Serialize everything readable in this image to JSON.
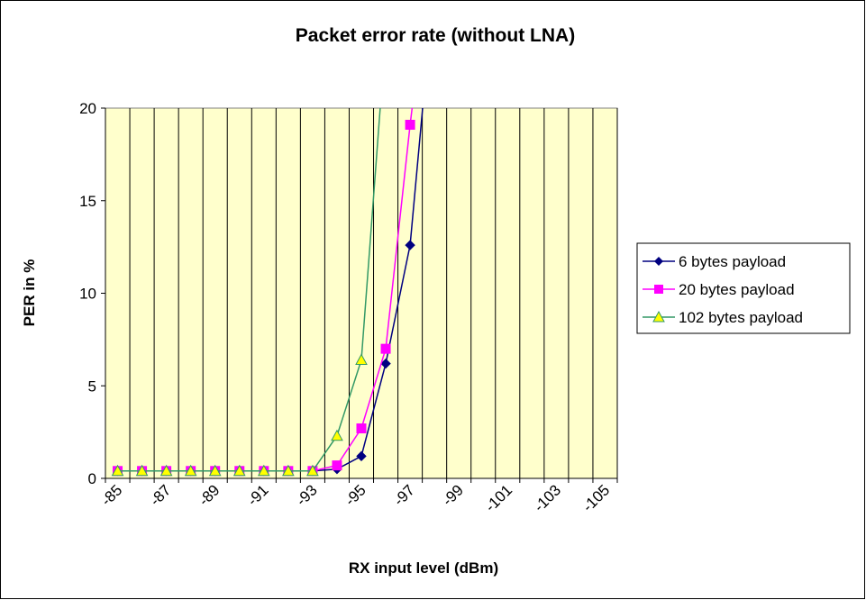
{
  "chart_data": {
    "type": "line",
    "title": "Packet error rate (without LNA)",
    "x_label": "RX input level (dBm)",
    "y_label": "PER in %",
    "categories": [
      "-85",
      null,
      "-87",
      null,
      "-89",
      null,
      "-91",
      null,
      "-93",
      null,
      "-95",
      null,
      "-97",
      null,
      "-99",
      null,
      "-101",
      null,
      "-103",
      null,
      "-105"
    ],
    "series": [
      {
        "name": "6 bytes payload",
        "color": "#000080",
        "marker": "diamond",
        "values": [
          0.4,
          0.4,
          0.4,
          0.4,
          0.4,
          0.4,
          0.4,
          0.4,
          0.4,
          0.5,
          1.2,
          6.2,
          12.6,
          27,
          null,
          null,
          null,
          null,
          null,
          null,
          null
        ]
      },
      {
        "name": "20 bytes payload",
        "color": "#ff00ff",
        "marker": "square",
        "values": [
          0.4,
          0.4,
          0.4,
          0.4,
          0.4,
          0.4,
          0.4,
          0.4,
          0.4,
          0.7,
          2.7,
          7.0,
          19.1,
          30,
          null,
          null,
          null,
          null,
          null,
          null,
          null
        ]
      },
      {
        "name": "102 bytes payload",
        "color": "#339966",
        "marker": "triangle",
        "values": [
          0.4,
          0.4,
          0.4,
          0.4,
          0.4,
          0.4,
          0.4,
          0.4,
          0.4,
          2.3,
          6.4,
          24,
          null,
          null,
          null,
          null,
          null,
          null,
          null,
          null,
          null
        ]
      }
    ],
    "ylim": [
      0,
      20
    ],
    "yticks": [
      0,
      5,
      10,
      15,
      20
    ],
    "legend": "right",
    "plot_background": "#ffffcc"
  }
}
